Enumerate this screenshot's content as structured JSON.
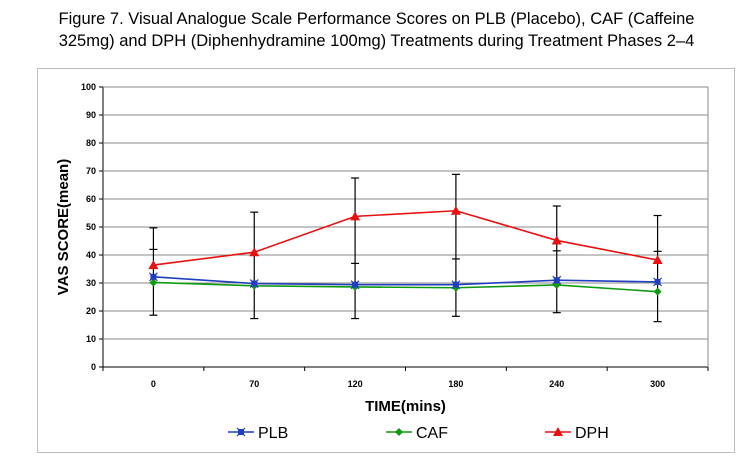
{
  "title_lines": [
    "Figure 7. Visual Analogue Scale Performance Scores on PLB (Placebo), CAF (Caffeine",
    "325mg) and DPH (Diphenhydramine 100mg) Treatments during Treatment Phases 2–4"
  ],
  "chart_data": {
    "type": "line",
    "title": "Figure 7. Visual Analogue Scale Performance Scores on PLB (Placebo), CAF (Caffeine 325mg) and DPH (Diphenhydramine 100mg) Treatments during Treatment Phases 2–4",
    "xlabel": "TIME(mins)",
    "ylabel": "VAS SCORE(mean)",
    "categories": [
      "0",
      "70",
      "120",
      "180",
      "240",
      "300"
    ],
    "ylim": [
      0,
      100
    ],
    "yticks": [
      0,
      10,
      20,
      30,
      40,
      50,
      60,
      70,
      80,
      90,
      100
    ],
    "grid": true,
    "legend_position": "bottom",
    "series": [
      {
        "name": "PLB",
        "color": "#1f3fbf",
        "marker": "x-square",
        "values": [
          32.2,
          29.8,
          29.4,
          29.4,
          31.0,
          30.4
        ]
      },
      {
        "name": "CAF",
        "color": "#109a10",
        "marker": "diamond",
        "values": [
          30.2,
          29.0,
          28.6,
          28.3,
          29.3,
          26.9
        ]
      },
      {
        "name": "DPH",
        "color": "#e81010",
        "marker": "triangle",
        "values": [
          36.4,
          41.0,
          53.8,
          55.8,
          45.2,
          38.2
        ],
        "error_upper": [
          49.7,
          55.3,
          67.5,
          68.8,
          57.5,
          54.1
        ],
        "error_lower": [
          18.5,
          17.3,
          17.3,
          18.1,
          19.4,
          16.2
        ]
      }
    ],
    "error_bar_color": "#000000",
    "inner_error_caps": [
      42.0,
      null,
      37.0,
      38.6,
      41.5,
      41.3
    ]
  }
}
